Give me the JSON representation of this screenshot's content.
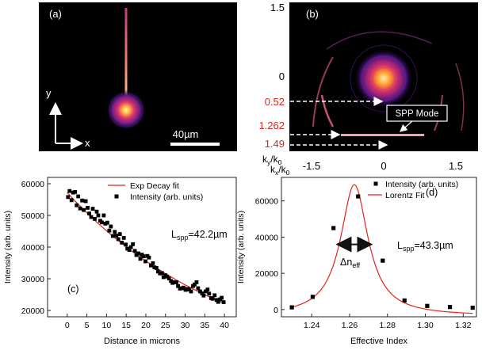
{
  "panel_a": {
    "label": "(a)",
    "y_axis_label": "y",
    "x_axis_label": "x",
    "scale_bar": "40µm"
  },
  "panel_b": {
    "label": "(b)",
    "y_ticks": [
      "1.5",
      "0"
    ],
    "red_markers": [
      "0.52",
      "1.262",
      "1.49"
    ],
    "callout": "SPP Mode",
    "x_ticks": [
      "-1.5",
      "0",
      "1.5"
    ],
    "ky_label": {
      "main": "k",
      "sub": "y",
      "slash": "/k",
      "sub2": "0"
    },
    "kx_label": {
      "main": "k",
      "sub": "x",
      "slash": "/k",
      "sub2": "0"
    },
    "marker_color": "#e0241b"
  },
  "chart_data": [
    {
      "type": "scatter",
      "panel": "(c)",
      "xlabel": "Distance in microns",
      "ylabel": "Intensity (arb. units)",
      "xlim": [
        -5,
        43
      ],
      "ylim": [
        18000,
        62000
      ],
      "x_ticks": [
        0,
        5,
        10,
        15,
        20,
        25,
        30,
        35,
        40
      ],
      "y_ticks": [
        20000,
        30000,
        40000,
        50000,
        60000
      ],
      "annotation": {
        "main": "L",
        "sub": "spp",
        "rest": "=42.2µm"
      },
      "legend": [
        "Exp Decay fit",
        "Intensity (arb. units)"
      ],
      "series": [
        {
          "name": "Intensity (arb. units)",
          "points": [
            [
              0.2,
              55800
            ],
            [
              0.6,
              57700
            ],
            [
              1.1,
              54800
            ],
            [
              1.5,
              57200
            ],
            [
              2.0,
              57400
            ],
            [
              2.4,
              53200
            ],
            [
              2.8,
              56000
            ],
            [
              3.3,
              52200
            ],
            [
              3.8,
              54700
            ],
            [
              4.2,
              51700
            ],
            [
              4.7,
              54500
            ],
            [
              5.2,
              52400
            ],
            [
              5.6,
              50600
            ],
            [
              6.1,
              49500
            ],
            [
              6.5,
              52100
            ],
            [
              7.0,
              48900
            ],
            [
              7.5,
              51200
            ],
            [
              7.9,
              50000
            ],
            [
              8.4,
              48300
            ],
            [
              8.8,
              47800
            ],
            [
              9.3,
              50000
            ],
            [
              9.7,
              47400
            ],
            [
              10.2,
              47700
            ],
            [
              10.7,
              45200
            ],
            [
              11.1,
              46500
            ],
            [
              11.6,
              43500
            ],
            [
              12.1,
              44800
            ],
            [
              12.5,
              43600
            ],
            [
              13.0,
              42500
            ],
            [
              13.4,
              44100
            ],
            [
              13.9,
              41400
            ],
            [
              14.4,
              42900
            ],
            [
              14.9,
              40800
            ],
            [
              15.3,
              39500
            ],
            [
              15.8,
              39100
            ],
            [
              16.2,
              40000
            ],
            [
              16.7,
              40900
            ],
            [
              17.2,
              38800
            ],
            [
              17.6,
              37500
            ],
            [
              18.1,
              38000
            ],
            [
              18.6,
              36300
            ],
            [
              19.0,
              37600
            ],
            [
              19.4,
              37100
            ],
            [
              19.9,
              35500
            ],
            [
              20.4,
              37200
            ],
            [
              20.8,
              36700
            ],
            [
              21.3,
              34200
            ],
            [
              21.8,
              34900
            ],
            [
              22.2,
              33600
            ],
            [
              22.7,
              33400
            ],
            [
              23.1,
              32300
            ],
            [
              23.6,
              31700
            ],
            [
              24.1,
              31800
            ],
            [
              24.5,
              30500
            ],
            [
              25.0,
              31100
            ],
            [
              25.4,
              30700
            ],
            [
              25.9,
              30100
            ],
            [
              26.4,
              29300
            ],
            [
              26.8,
              28700
            ],
            [
              27.3,
              28900
            ],
            [
              27.8,
              28900
            ],
            [
              28.2,
              27700
            ],
            [
              28.7,
              26900
            ],
            [
              29.2,
              27000
            ],
            [
              29.6,
              27200
            ],
            [
              30.1,
              26500
            ],
            [
              30.6,
              26800
            ],
            [
              31.0,
              26600
            ],
            [
              31.5,
              26000
            ],
            [
              32.0,
              27700
            ],
            [
              32.4,
              28200
            ],
            [
              32.9,
              28900
            ],
            [
              33.3,
              27000
            ],
            [
              33.8,
              26000
            ],
            [
              34.3,
              25400
            ],
            [
              34.7,
              24700
            ],
            [
              35.2,
              26000
            ],
            [
              35.7,
              26600
            ],
            [
              36.1,
              25300
            ],
            [
              36.6,
              23900
            ],
            [
              37.0,
              23700
            ],
            [
              37.5,
              24800
            ],
            [
              38.0,
              23300
            ],
            [
              38.4,
              22700
            ],
            [
              38.9,
              23500
            ],
            [
              39.3,
              24000
            ],
            [
              39.8,
              22600
            ]
          ]
        },
        {
          "name": "Exp Decay fit",
          "fit": {
            "form": "A*exp(-x/L)+C",
            "A": 57200,
            "L": 42.2,
            "C": 0
          }
        }
      ]
    },
    {
      "type": "scatter",
      "panel": "(d)",
      "xlabel": "Effective Index",
      "ylabel": "Intensity (arb. units)",
      "xlim": [
        1.224,
        1.327
      ],
      "ylim": [
        -4000,
        73000
      ],
      "x_ticks": [
        1.24,
        1.26,
        1.28,
        1.3,
        1.32
      ],
      "x_tick_labels": [
        "1.24",
        "1.26",
        "1.28",
        "1.30",
        "1.32"
      ],
      "y_ticks": [
        0,
        20000,
        40000,
        60000
      ],
      "annotation": {
        "main": "L",
        "sub": "spp",
        "rest": "=43.3µm"
      },
      "delta_label": {
        "main": "Δn",
        "sub": "eff"
      },
      "legend": [
        "Intensity (arb. units)",
        "Lorentz Fit"
      ],
      "series": [
        {
          "name": "Intensity (arb. units)",
          "points": [
            [
              1.2295,
              1200
            ],
            [
              1.2405,
              7000
            ],
            [
              1.2515,
              45000
            ],
            [
              1.2645,
              62500
            ],
            [
              1.2775,
              27000
            ],
            [
              1.289,
              5000
            ],
            [
              1.301,
              2000
            ],
            [
              1.313,
              1400
            ],
            [
              1.325,
              1000
            ]
          ]
        },
        {
          "name": "Lorentz Fit",
          "fit": {
            "form": "y0 + A/(1+((x-xc)/w)^2)",
            "y0": -3500,
            "A": 72500,
            "xc": 1.2625,
            "w": 0.0088
          }
        }
      ]
    }
  ],
  "colors": {
    "fit_line": "#e0241b",
    "points": "#000000",
    "marker_red": "#e0241b"
  }
}
